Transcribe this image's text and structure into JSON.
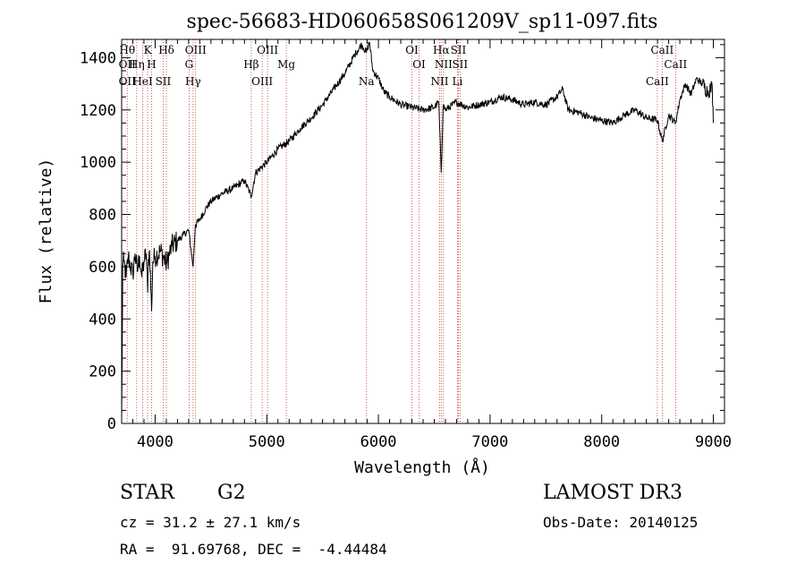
{
  "chart_data": {
    "type": "line",
    "title": "spec-56683-HD060658S061209V_sp11-097.fits",
    "xlabel": "Wavelength (Å)",
    "ylabel": "Flux (relative)",
    "xlim": [
      3700,
      9100
    ],
    "ylim": [
      0,
      1470
    ],
    "xticks": [
      4000,
      5000,
      6000,
      7000,
      8000,
      9000
    ],
    "yticks": [
      0,
      200,
      400,
      600,
      800,
      1000,
      1200,
      1400
    ],
    "grid": false,
    "series": [
      {
        "x": [
          3700,
          3705,
          3710,
          3720,
          3740,
          3760,
          3780,
          3800,
          3820,
          3840,
          3860,
          3880,
          3900,
          3920,
          3933,
          3940,
          3950,
          3968,
          3980,
          4000,
          4050,
          4101,
          4150,
          4200,
          4250,
          4300,
          4340,
          4360,
          4400,
          4450,
          4500,
          4600,
          4700,
          4800,
          4861,
          4900,
          5000,
          5100,
          5200,
          5300,
          5400,
          5500,
          5600,
          5700,
          5800,
          5850,
          5893,
          5920,
          5950,
          6000,
          6050,
          6100,
          6200,
          6300,
          6400,
          6500,
          6540,
          6563,
          6580,
          6600,
          6700,
          6800,
          6900,
          7000,
          7100,
          7200,
          7300,
          7400,
          7500,
          7600,
          7650,
          7700,
          7800,
          7900,
          8000,
          8100,
          8200,
          8300,
          8400,
          8500,
          8542,
          8600,
          8662,
          8700,
          8750,
          8800,
          8850,
          8900,
          8950,
          8990,
          9000
        ],
        "y": [
          20,
          250,
          600,
          620,
          560,
          640,
          600,
          570,
          650,
          580,
          640,
          560,
          620,
          650,
          500,
          630,
          660,
          430,
          620,
          640,
          660,
          610,
          680,
          700,
          720,
          740,
          600,
          760,
          780,
          820,
          850,
          880,
          900,
          930,
          870,
          960,
          1000,
          1050,
          1080,
          1130,
          1170,
          1220,
          1280,
          1340,
          1420,
          1450,
          1420,
          1460,
          1350,
          1320,
          1270,
          1250,
          1220,
          1210,
          1200,
          1210,
          1230,
          960,
          1220,
          1200,
          1230,
          1210,
          1220,
          1230,
          1250,
          1240,
          1220,
          1230,
          1220,
          1250,
          1280,
          1200,
          1190,
          1170,
          1160,
          1150,
          1180,
          1200,
          1170,
          1160,
          1080,
          1180,
          1150,
          1240,
          1300,
          1260,
          1320,
          1300,
          1270,
          1290,
          1150
        ]
      }
    ],
    "line_markers": [
      {
        "x": 3750,
        "lines": [
          "Hθ",
          "OII",
          "OII"
        ]
      },
      {
        "x": 3835,
        "lines": [
          "Hη"
        ]
      },
      {
        "x": 3889,
        "lines": [
          "HeI"
        ]
      },
      {
        "x": 3933,
        "lines": [
          "K"
        ]
      },
      {
        "x": 3968,
        "lines": [
          "H"
        ]
      },
      {
        "x": 4072,
        "lines": [
          "SII"
        ]
      },
      {
        "x": 4101,
        "lines": [
          "Hδ"
        ]
      },
      {
        "x": 4304,
        "lines": [
          "G"
        ]
      },
      {
        "x": 4340,
        "lines": [
          "Hγ"
        ]
      },
      {
        "x": 4363,
        "lines": [
          "OIII"
        ]
      },
      {
        "x": 4861,
        "lines": [
          "Hβ"
        ]
      },
      {
        "x": 4959,
        "lines": [
          "OIII"
        ]
      },
      {
        "x": 5007,
        "lines": [
          "OIII"
        ]
      },
      {
        "x": 5175,
        "lines": [
          "Mg"
        ]
      },
      {
        "x": 5893,
        "lines": [
          "Na"
        ]
      },
      {
        "x": 6300,
        "lines": [
          "OI"
        ]
      },
      {
        "x": 6364,
        "lines": [
          "OI"
        ]
      },
      {
        "x": 6548,
        "lines": [
          "NII"
        ]
      },
      {
        "x": 6563,
        "lines": [
          "Hα"
        ]
      },
      {
        "x": 6583,
        "lines": [
          "NII"
        ]
      },
      {
        "x": 6708,
        "lines": [
          "Li"
        ]
      },
      {
        "x": 6716,
        "lines": [
          "SII"
        ]
      },
      {
        "x": 6731,
        "lines": [
          "SII"
        ]
      },
      {
        "x": 8498,
        "lines": [
          "CaII"
        ]
      },
      {
        "x": 8542,
        "lines": [
          "CaII"
        ]
      },
      {
        "x": 8662,
        "lines": [
          "CaII"
        ]
      }
    ]
  },
  "info": {
    "class": "STAR",
    "subclass": "G2",
    "cz": "cz = 31.2 ± 27.1 km/s",
    "coords": "RA =  91.69768, DEC =  -4.44484",
    "survey": "LAMOST DR3",
    "obs_date": "Obs-Date: 20140125"
  }
}
